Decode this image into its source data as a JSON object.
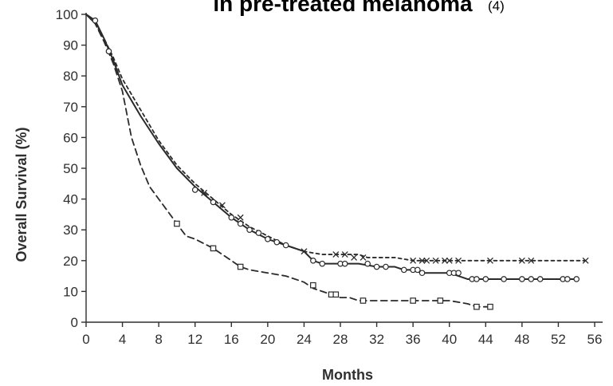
{
  "title": {
    "main": "in pre-treated melanoma",
    "ref": "(4)"
  },
  "chart_data": {
    "type": "line",
    "xlabel": "Months",
    "ylabel": "Overall Survival (%)",
    "xlim": [
      0,
      56
    ],
    "ylim": [
      0,
      100
    ],
    "xticks": [
      0,
      4,
      8,
      12,
      16,
      20,
      24,
      28,
      32,
      36,
      40,
      44,
      48,
      52,
      56
    ],
    "yticks": [
      0,
      10,
      20,
      30,
      40,
      50,
      60,
      70,
      80,
      90,
      100
    ],
    "grid": false,
    "legend": "none",
    "series": [
      {
        "style": "solid",
        "censor_marker": "circle",
        "x": [
          0,
          1,
          2,
          3,
          4,
          6,
          8,
          10,
          12,
          14,
          16,
          18,
          20,
          22,
          24,
          25,
          26,
          28,
          30,
          32,
          34,
          35,
          36,
          37,
          40,
          42,
          44,
          48,
          50,
          52,
          54
        ],
        "y": [
          100,
          98,
          92,
          85,
          77,
          67,
          58,
          50,
          44,
          39,
          34,
          30,
          27,
          25,
          23,
          20,
          19,
          19,
          19,
          18,
          18,
          17,
          17,
          16,
          16,
          14,
          14,
          14,
          14,
          14,
          14
        ],
        "censored": [
          [
            1,
            98
          ],
          [
            2.5,
            88
          ],
          [
            12,
            43
          ],
          [
            14,
            39
          ],
          [
            16,
            34
          ],
          [
            17,
            32
          ],
          [
            18,
            30
          ],
          [
            19,
            29
          ],
          [
            20,
            27
          ],
          [
            21,
            26
          ],
          [
            22,
            25
          ],
          [
            25,
            20
          ],
          [
            26,
            19
          ],
          [
            28,
            19
          ],
          [
            28.5,
            19
          ],
          [
            31,
            19
          ],
          [
            32,
            18
          ],
          [
            33,
            18
          ],
          [
            35,
            17
          ],
          [
            36,
            17
          ],
          [
            36.5,
            17
          ],
          [
            37,
            16
          ],
          [
            40,
            16
          ],
          [
            40.5,
            16
          ],
          [
            41,
            16
          ],
          [
            42.5,
            14
          ],
          [
            43,
            14
          ],
          [
            44,
            14
          ],
          [
            46,
            14
          ],
          [
            48,
            14
          ],
          [
            49,
            14
          ],
          [
            50,
            14
          ],
          [
            52.5,
            14
          ],
          [
            53,
            14
          ],
          [
            54,
            14
          ]
        ]
      },
      {
        "style": "short-dash",
        "censor_marker": "x",
        "x": [
          0,
          1,
          2,
          3,
          4,
          6,
          8,
          10,
          12,
          14,
          16,
          18,
          20,
          22,
          24,
          26,
          28,
          30,
          31,
          32,
          34,
          36,
          38,
          40,
          44,
          48,
          52,
          55
        ],
        "y": [
          100,
          97,
          92,
          86,
          79,
          69,
          59,
          51,
          45,
          40,
          35,
          31,
          28,
          25,
          23,
          22,
          22,
          22,
          21,
          21,
          21,
          20,
          20,
          20,
          20,
          20,
          20,
          20
        ],
        "censored": [
          [
            13,
            42
          ],
          [
            15,
            38
          ],
          [
            17,
            34
          ],
          [
            24,
            23
          ],
          [
            27.5,
            22
          ],
          [
            28.5,
            22
          ],
          [
            29.5,
            21
          ],
          [
            30.5,
            21
          ],
          [
            36,
            20
          ],
          [
            37,
            20
          ],
          [
            37.5,
            20
          ],
          [
            38.5,
            20
          ],
          [
            39.5,
            20
          ],
          [
            40,
            20
          ],
          [
            41,
            20
          ],
          [
            44.5,
            20
          ],
          [
            48,
            20
          ],
          [
            49,
            20
          ],
          [
            55,
            20
          ]
        ]
      },
      {
        "style": "long-dash",
        "censor_marker": "square",
        "x": [
          0,
          1,
          2,
          3,
          4,
          5,
          6,
          7,
          8,
          9,
          10,
          11,
          12,
          14,
          16,
          17,
          18,
          20,
          22,
          24,
          25,
          26,
          27,
          28,
          29,
          30,
          32,
          34,
          36,
          38,
          40,
          42,
          43,
          44.5
        ],
        "y": [
          100,
          97,
          91,
          84,
          75,
          60,
          51,
          44,
          40,
          36,
          32,
          28,
          27,
          24,
          20,
          18,
          17,
          16,
          15,
          13,
          11,
          10,
          9,
          8,
          8,
          7,
          7,
          7,
          7,
          7,
          7,
          6,
          5,
          5
        ],
        "censored": [
          [
            10,
            32
          ],
          [
            14,
            24
          ],
          [
            17,
            18
          ],
          [
            25,
            12
          ],
          [
            27,
            9
          ],
          [
            27.5,
            9
          ],
          [
            30.5,
            7
          ],
          [
            36,
            7
          ],
          [
            39,
            7
          ],
          [
            43,
            5
          ],
          [
            44.5,
            5
          ]
        ]
      }
    ]
  }
}
